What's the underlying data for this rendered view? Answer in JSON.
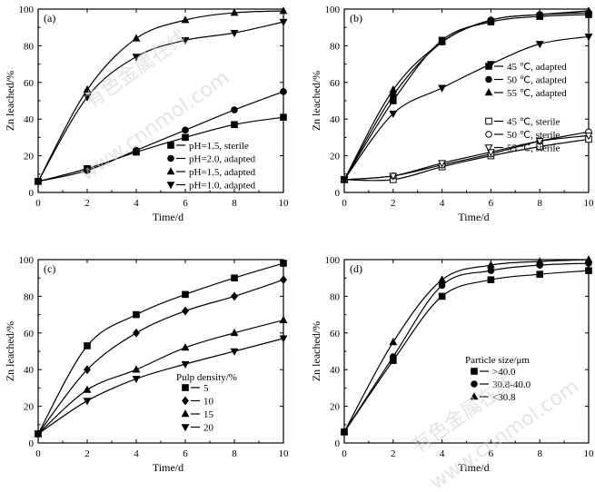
{
  "watermark": {
    "cn": "有色金属在线",
    "url": "www.cnnmol.com"
  },
  "chart_data": [
    {
      "type": "line",
      "panel": "(a)",
      "xlabel": "Time/d",
      "ylabel": "Zn leached/%",
      "xlim": [
        0,
        10
      ],
      "ylim": [
        0,
        100
      ],
      "xticks": [
        0,
        2,
        4,
        6,
        8,
        10
      ],
      "yticks": [
        0,
        20,
        40,
        60,
        80,
        100
      ],
      "legend_position": "bottom-right",
      "x": [
        0,
        2,
        4,
        6,
        8,
        10
      ],
      "series": [
        {
          "name": "pH=1.5, sterile",
          "marker": "square",
          "values": [
            6,
            13,
            22,
            30,
            37,
            41
          ]
        },
        {
          "name": "pH=2.0, adapted",
          "marker": "circle",
          "values": [
            6,
            12,
            23,
            34,
            45,
            55
          ]
        },
        {
          "name": "pH=1.5, adapted",
          "marker": "triangle-up",
          "values": [
            6,
            56,
            84,
            94,
            98,
            99
          ]
        },
        {
          "name": "pH=1.0, adapted",
          "marker": "triangle-down",
          "values": [
            6,
            52,
            74,
            83,
            87,
            93
          ]
        }
      ]
    },
    {
      "type": "line",
      "panel": "(b)",
      "xlabel": "Time/d",
      "ylabel": "Zn leached/%",
      "xlim": [
        0,
        10
      ],
      "ylim": [
        0,
        100
      ],
      "xticks": [
        0,
        2,
        4,
        6,
        8,
        10
      ],
      "yticks": [
        0,
        20,
        40,
        60,
        80,
        100
      ],
      "legend_position": "right",
      "x": [
        0,
        2,
        4,
        6,
        8,
        10
      ],
      "series": [
        {
          "name": "45 ℃, adapted",
          "marker": "square",
          "values": [
            7,
            50,
            83,
            93,
            96,
            97
          ]
        },
        {
          "name": "50 ℃, adapted",
          "marker": "circle",
          "values": [
            7,
            53,
            82,
            94,
            97,
            98
          ]
        },
        {
          "name": "55 ℃, adapted",
          "marker": "triangle-up",
          "values": [
            7,
            56,
            82,
            94,
            97,
            99
          ]
        },
        {
          "name": "45 ℃, sterile",
          "marker": "square-open",
          "values": [
            7,
            7,
            14,
            20,
            25,
            29
          ]
        },
        {
          "name": "50 ℃, sterile",
          "marker": "circle-open",
          "values": [
            7,
            9,
            15,
            21,
            28,
            33
          ]
        },
        {
          "name": "55 ℃, sterile",
          "marker": "triangle-down-open",
          "values": [
            7,
            9,
            16,
            22,
            28,
            31
          ]
        },
        {
          "name": "",
          "marker": "triangle-down",
          "values": [
            7,
            43,
            57,
            70,
            81,
            85
          ]
        }
      ]
    },
    {
      "type": "line",
      "panel": "(c)",
      "xlabel": "Time/d",
      "ylabel": "Zn leached/%",
      "xlim": [
        0,
        10
      ],
      "ylim": [
        0,
        100
      ],
      "xticks": [
        0,
        2,
        4,
        6,
        8,
        10
      ],
      "yticks": [
        0,
        20,
        40,
        60,
        80,
        100
      ],
      "legend_title": "Pulp density/%",
      "legend_position": "bottom-right",
      "x": [
        0,
        2,
        4,
        6,
        8,
        10
      ],
      "series": [
        {
          "name": "5",
          "marker": "square",
          "values": [
            5,
            53,
            70,
            81,
            90,
            98
          ]
        },
        {
          "name": "10",
          "marker": "diamond",
          "values": [
            5,
            40,
            60,
            72,
            80,
            89
          ]
        },
        {
          "name": "15",
          "marker": "triangle-up",
          "values": [
            5,
            29,
            40,
            52,
            60,
            67
          ]
        },
        {
          "name": "20",
          "marker": "triangle-down",
          "values": [
            5,
            23,
            35,
            43,
            50,
            57
          ]
        }
      ]
    },
    {
      "type": "line",
      "panel": "(d)",
      "xlabel": "Time/d",
      "ylabel": "Zn leached/%",
      "xlim": [
        0,
        10
      ],
      "ylim": [
        0,
        100
      ],
      "xticks": [
        0,
        2,
        4,
        6,
        8,
        10
      ],
      "yticks": [
        0,
        20,
        40,
        60,
        80,
        100
      ],
      "legend_title": "Particle size/μm",
      "legend_position": "bottom-right",
      "x": [
        0,
        2,
        4,
        6,
        8,
        10
      ],
      "series": [
        {
          "name": ">40.0",
          "marker": "square",
          "values": [
            6,
            45,
            80,
            89,
            92,
            94
          ]
        },
        {
          "name": "30.8-40.0",
          "marker": "circle",
          "values": [
            6,
            47,
            86,
            94,
            97,
            98
          ]
        },
        {
          "name": "<30.8",
          "marker": "triangle-up",
          "values": [
            6,
            55,
            89,
            97,
            99,
            100
          ]
        }
      ]
    }
  ]
}
